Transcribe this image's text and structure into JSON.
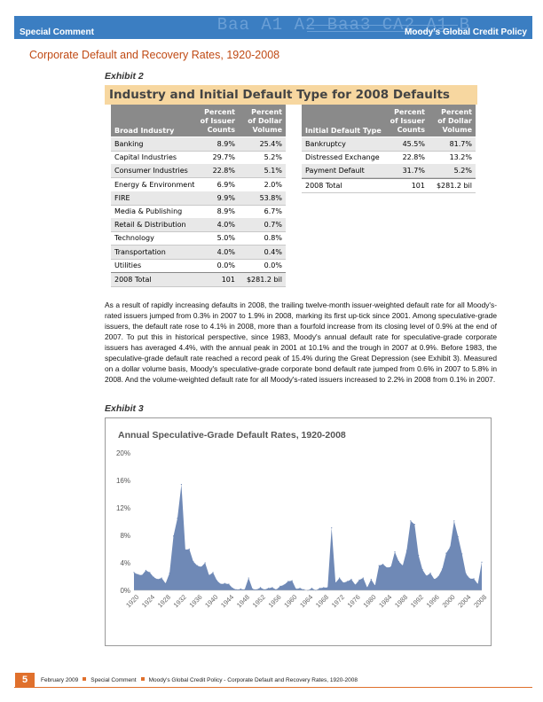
{
  "header": {
    "section": "Special Comment",
    "publication": "Moody's Global Credit Policy",
    "decoration": "Baa A1 A2 Baa3 CA2 A1 B"
  },
  "page_title": "Corporate Default and Recovery Rates, 1920-2008",
  "exhibit2": {
    "label": "Exhibit 2",
    "title": "Industry and Initial Default Type for 2008 Defaults",
    "industry_table": {
      "columns": [
        "Broad Industry",
        "Percent of Issuer Counts",
        "Percent of Dollar Volume"
      ],
      "header": {
        "c1": "Broad Industry",
        "c2a": "Percent",
        "c2b": "of Issuer",
        "c2c": "Counts",
        "c3a": "Percent",
        "c3b": "of Dollar",
        "c3c": "Volume"
      },
      "rows": [
        [
          "Banking",
          "8.9%",
          "25.4%"
        ],
        [
          "Capital Industries",
          "29.7%",
          "5.2%"
        ],
        [
          "Consumer Industries",
          "22.8%",
          "5.1%"
        ],
        [
          "Energy & Environment",
          "6.9%",
          "2.0%"
        ],
        [
          "FIRE",
          "9.9%",
          "53.8%"
        ],
        [
          "Media & Publishing",
          "8.9%",
          "6.7%"
        ],
        [
          "Retail & Distribution",
          "4.0%",
          "0.7%"
        ],
        [
          "Technology",
          "5.0%",
          "0.8%"
        ],
        [
          "Transportation",
          "4.0%",
          "0.4%"
        ],
        [
          "Utilities",
          "0.0%",
          "0.0%"
        ],
        [
          "2008 Total",
          "101",
          "$281.2 bil"
        ]
      ]
    },
    "type_table": {
      "header": {
        "c1": "Initial Default Type",
        "c2a": "Percent",
        "c2b": "of Issuer",
        "c2c": "Counts",
        "c3a": "Percent",
        "c3b": "of Dollar",
        "c3c": "Volume"
      },
      "rows": [
        [
          "Bankruptcy",
          "45.5%",
          "81.7%"
        ],
        [
          "Distressed Exchange",
          "22.8%",
          "13.2%"
        ],
        [
          "Payment Default",
          "31.7%",
          "5.2%"
        ],
        [
          "2008 Total",
          "101",
          "$281.2 bil"
        ]
      ]
    }
  },
  "paragraph": "As a result of rapidly increasing defaults in 2008, the trailing twelve-month issuer-weighted default rate for all Moody's-rated issuers jumped from 0.3% in 2007 to 1.9% in 2008, marking its first up-tick since 2001.  Among speculative-grade issuers, the default rate rose to 4.1% in 2008, more than a fourfold increase from its closing level of 0.9% at the end of 2007.  To put this in historical perspective, since 1983, Moody's annual default rate for speculative-grade corporate issuers has averaged 4.4%, with the annual peak in 2001 at 10.1% and the trough in 2007 at 0.9%.  Before 1983, the speculative-grade default rate reached a record peak of 15.4% during the Great Depression (see Exhibit 3).  Measured on a dollar volume basis, Moody's speculative-grade corporate bond default rate jumped from 0.6% in 2007 to 5.8% in 2008.  And the volume-weighted default rate for all Moody's-rated issuers increased to 2.2% in 2008 from 0.1% in 2007.",
  "exhibit3": {
    "label": "Exhibit 3"
  },
  "chart_data": {
    "type": "area",
    "title": "Annual Speculative-Grade Default Rates, 1920-2008",
    "xlabel": "",
    "ylabel": "",
    "ylim": [
      0,
      20
    ],
    "yticks": [
      "0%",
      "4%",
      "8%",
      "12%",
      "16%",
      "20%"
    ],
    "xticks": [
      "1920",
      "1924",
      "1928",
      "1932",
      "1936",
      "1940",
      "1944",
      "1948",
      "1952",
      "1956",
      "1960",
      "1964",
      "1968",
      "1972",
      "1976",
      "1980",
      "1984",
      "1988",
      "1992",
      "1996",
      "2000",
      "2004",
      "2008"
    ],
    "x": [
      1920,
      1921,
      1922,
      1923,
      1924,
      1925,
      1926,
      1927,
      1928,
      1929,
      1930,
      1931,
      1932,
      1933,
      1934,
      1935,
      1936,
      1937,
      1938,
      1939,
      1940,
      1941,
      1942,
      1943,
      1944,
      1945,
      1946,
      1947,
      1948,
      1949,
      1950,
      1951,
      1952,
      1953,
      1954,
      1955,
      1956,
      1957,
      1958,
      1959,
      1960,
      1961,
      1962,
      1963,
      1964,
      1965,
      1966,
      1967,
      1968,
      1969,
      1970,
      1971,
      1972,
      1973,
      1974,
      1975,
      1976,
      1977,
      1978,
      1979,
      1980,
      1981,
      1982,
      1983,
      1984,
      1985,
      1986,
      1987,
      1988,
      1989,
      1990,
      1991,
      1992,
      1993,
      1994,
      1995,
      1996,
      1997,
      1998,
      1999,
      2000,
      2001,
      2002,
      2003,
      2004,
      2005,
      2006,
      2007,
      2008
    ],
    "values": [
      2.6,
      2.3,
      2.2,
      2.9,
      2.6,
      1.9,
      1.6,
      1.8,
      1.0,
      2.5,
      7.9,
      10.5,
      15.4,
      5.9,
      6.0,
      4.2,
      3.6,
      3.4,
      4.0,
      2.2,
      2.6,
      1.4,
      0.9,
      1.0,
      0.9,
      0.3,
      0.1,
      0.2,
      0.1,
      1.8,
      0.2,
      0.1,
      0.4,
      0.1,
      0.3,
      0.4,
      0.1,
      0.6,
      0.8,
      1.3,
      1.4,
      0.2,
      0.3,
      0.1,
      0.0,
      0.3,
      0.0,
      0.3,
      0.4,
      0.4,
      9.1,
      1.1,
      1.8,
      1.1,
      1.3,
      1.6,
      0.8,
      1.5,
      1.8,
      0.4,
      1.6,
      0.7,
      3.6,
      3.8,
      3.3,
      3.4,
      5.6,
      4.2,
      3.6,
      5.8,
      10.1,
      9.6,
      5.1,
      3.0,
      2.1,
      2.5,
      1.6,
      2.0,
      3.1,
      5.4,
      6.3,
      10.1,
      7.8,
      5.3,
      2.4,
      1.7,
      1.7,
      0.9,
      4.1
    ],
    "color": "#6f89b6"
  },
  "footer": {
    "page_number": "5",
    "date": "February 2009",
    "type": "Special Comment",
    "doc": "Moody's Global Credit Policy - Corporate Default and Recovery Rates, 1920-2008",
    "accent": "#e0702c"
  }
}
